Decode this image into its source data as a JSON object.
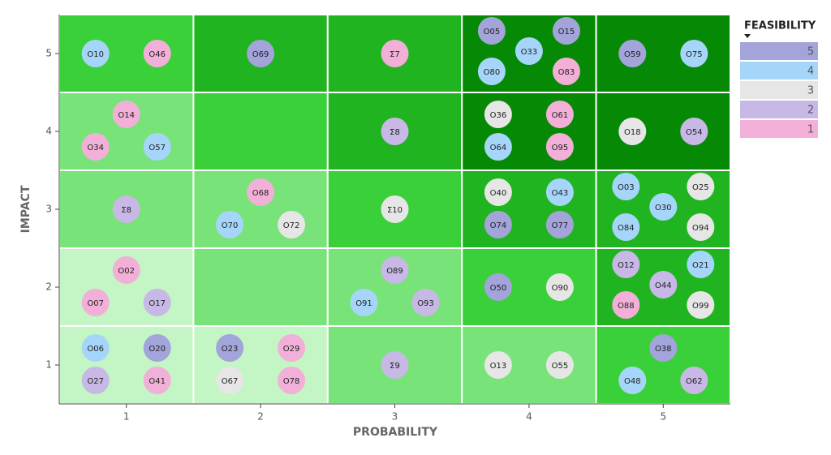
{
  "chart_data": {
    "type": "risk-matrix",
    "x_label": "PROBABILITY",
    "y_label": "IMPACT",
    "xticks": [
      1,
      2,
      3,
      4,
      5
    ],
    "yticks": [
      1,
      2,
      3,
      4,
      5
    ],
    "xlim": [
      1,
      5
    ],
    "ylim": [
      1,
      5
    ],
    "legend": {
      "title": "FEASIBILITY",
      "levels": [
        5,
        4,
        3,
        2,
        1
      ],
      "colors": [
        "#a2a4da",
        "#a6d5fa",
        "#e6e6e6",
        "#c8b8e6",
        "#f2b0d8"
      ]
    },
    "cells": [
      {
        "probability": 1,
        "impact": 5,
        "color": "#3ad03a",
        "items": [
          {
            "label": "O10",
            "feasibility": 4
          },
          {
            "label": "O46",
            "feasibility": 1
          }
        ]
      },
      {
        "probability": 2,
        "impact": 5,
        "color": "#20b420",
        "items": [
          {
            "label": "O69",
            "feasibility": 5
          }
        ]
      },
      {
        "probability": 3,
        "impact": 5,
        "color": "#20b420",
        "items": [
          {
            "label": "Σ7",
            "feasibility": 1
          }
        ]
      },
      {
        "probability": 4,
        "impact": 5,
        "color": "#068a06",
        "items": [
          {
            "label": "O05",
            "feasibility": 5
          },
          {
            "label": "O15",
            "feasibility": 5
          },
          {
            "label": "O33",
            "feasibility": 4
          },
          {
            "label": "O80",
            "feasibility": 4
          },
          {
            "label": "O83",
            "feasibility": 1
          }
        ]
      },
      {
        "probability": 5,
        "impact": 5,
        "color": "#068a06",
        "items": [
          {
            "label": "O59",
            "feasibility": 5
          },
          {
            "label": "O75",
            "feasibility": 4
          }
        ]
      },
      {
        "probability": 1,
        "impact": 4,
        "color": "#78e378",
        "items": [
          {
            "label": "O14",
            "feasibility": 1
          },
          {
            "label": "O34",
            "feasibility": 1
          },
          {
            "label": "O57",
            "feasibility": 4
          }
        ]
      },
      {
        "probability": 2,
        "impact": 4,
        "color": "#3ad03a",
        "items": []
      },
      {
        "probability": 3,
        "impact": 4,
        "color": "#20b420",
        "items": [
          {
            "label": "Σ8",
            "feasibility": 2
          }
        ]
      },
      {
        "probability": 4,
        "impact": 4,
        "color": "#068a06",
        "items": [
          {
            "label": "O36",
            "feasibility": 3
          },
          {
            "label": "O61",
            "feasibility": 1
          },
          {
            "label": "O64",
            "feasibility": 4
          },
          {
            "label": "O95",
            "feasibility": 1
          }
        ]
      },
      {
        "probability": 5,
        "impact": 4,
        "color": "#068a06",
        "items": [
          {
            "label": "O18",
            "feasibility": 3
          },
          {
            "label": "O54",
            "feasibility": 2
          }
        ]
      },
      {
        "probability": 1,
        "impact": 3,
        "color": "#78e378",
        "items": [
          {
            "label": "Σ8",
            "feasibility": 2
          }
        ]
      },
      {
        "probability": 2,
        "impact": 3,
        "color": "#78e378",
        "items": [
          {
            "label": "O68",
            "feasibility": 1
          },
          {
            "label": "O70",
            "feasibility": 4
          },
          {
            "label": "O72",
            "feasibility": 3
          }
        ]
      },
      {
        "probability": 3,
        "impact": 3,
        "color": "#3ad03a",
        "items": [
          {
            "label": "Σ10",
            "feasibility": 3
          }
        ]
      },
      {
        "probability": 4,
        "impact": 3,
        "color": "#20b420",
        "items": [
          {
            "label": "O40",
            "feasibility": 3
          },
          {
            "label": "O43",
            "feasibility": 4
          },
          {
            "label": "O74",
            "feasibility": 5
          },
          {
            "label": "O77",
            "feasibility": 5
          }
        ]
      },
      {
        "probability": 5,
        "impact": 3,
        "color": "#20b420",
        "items": [
          {
            "label": "O03",
            "feasibility": 4
          },
          {
            "label": "O25",
            "feasibility": 3
          },
          {
            "label": "O30",
            "feasibility": 4
          },
          {
            "label": "O84",
            "feasibility": 4
          },
          {
            "label": "O94",
            "feasibility": 3
          }
        ]
      },
      {
        "probability": 1,
        "impact": 2,
        "color": "#c4f5c4",
        "items": [
          {
            "label": "O02",
            "feasibility": 1
          },
          {
            "label": "O07",
            "feasibility": 1
          },
          {
            "label": "O17",
            "feasibility": 2
          }
        ]
      },
      {
        "probability": 2,
        "impact": 2,
        "color": "#78e378",
        "items": []
      },
      {
        "probability": 3,
        "impact": 2,
        "color": "#78e378",
        "items": [
          {
            "label": "O89",
            "feasibility": 2
          },
          {
            "label": "O91",
            "feasibility": 4
          },
          {
            "label": "O93",
            "feasibility": 2
          }
        ]
      },
      {
        "probability": 4,
        "impact": 2,
        "color": "#3ad03a",
        "items": [
          {
            "label": "O50",
            "feasibility": 5
          },
          {
            "label": "O90",
            "feasibility": 3
          }
        ]
      },
      {
        "probability": 5,
        "impact": 2,
        "color": "#20b420",
        "items": [
          {
            "label": "O12",
            "feasibility": 2
          },
          {
            "label": "O21",
            "feasibility": 4
          },
          {
            "label": "O44",
            "feasibility": 2
          },
          {
            "label": "O88",
            "feasibility": 1
          },
          {
            "label": "O99",
            "feasibility": 3
          }
        ]
      },
      {
        "probability": 1,
        "impact": 1,
        "color": "#c4f5c4",
        "items": [
          {
            "label": "O06",
            "feasibility": 4
          },
          {
            "label": "O20",
            "feasibility": 5
          },
          {
            "label": "O27",
            "feasibility": 2
          },
          {
            "label": "O41",
            "feasibility": 1
          }
        ]
      },
      {
        "probability": 2,
        "impact": 1,
        "color": "#c4f5c4",
        "items": [
          {
            "label": "O23",
            "feasibility": 5
          },
          {
            "label": "O29",
            "feasibility": 1
          },
          {
            "label": "O67",
            "feasibility": 3
          },
          {
            "label": "O78",
            "feasibility": 1
          }
        ]
      },
      {
        "probability": 3,
        "impact": 1,
        "color": "#78e378",
        "items": [
          {
            "label": "Σ9",
            "feasibility": 2
          }
        ]
      },
      {
        "probability": 4,
        "impact": 1,
        "color": "#78e378",
        "items": [
          {
            "label": "O13",
            "feasibility": 3
          },
          {
            "label": "O55",
            "feasibility": 3
          }
        ]
      },
      {
        "probability": 5,
        "impact": 1,
        "color": "#3ad03a",
        "items": [
          {
            "label": "O38",
            "feasibility": 5
          },
          {
            "label": "O48",
            "feasibility": 4
          },
          {
            "label": "O62",
            "feasibility": 2
          }
        ]
      }
    ]
  }
}
